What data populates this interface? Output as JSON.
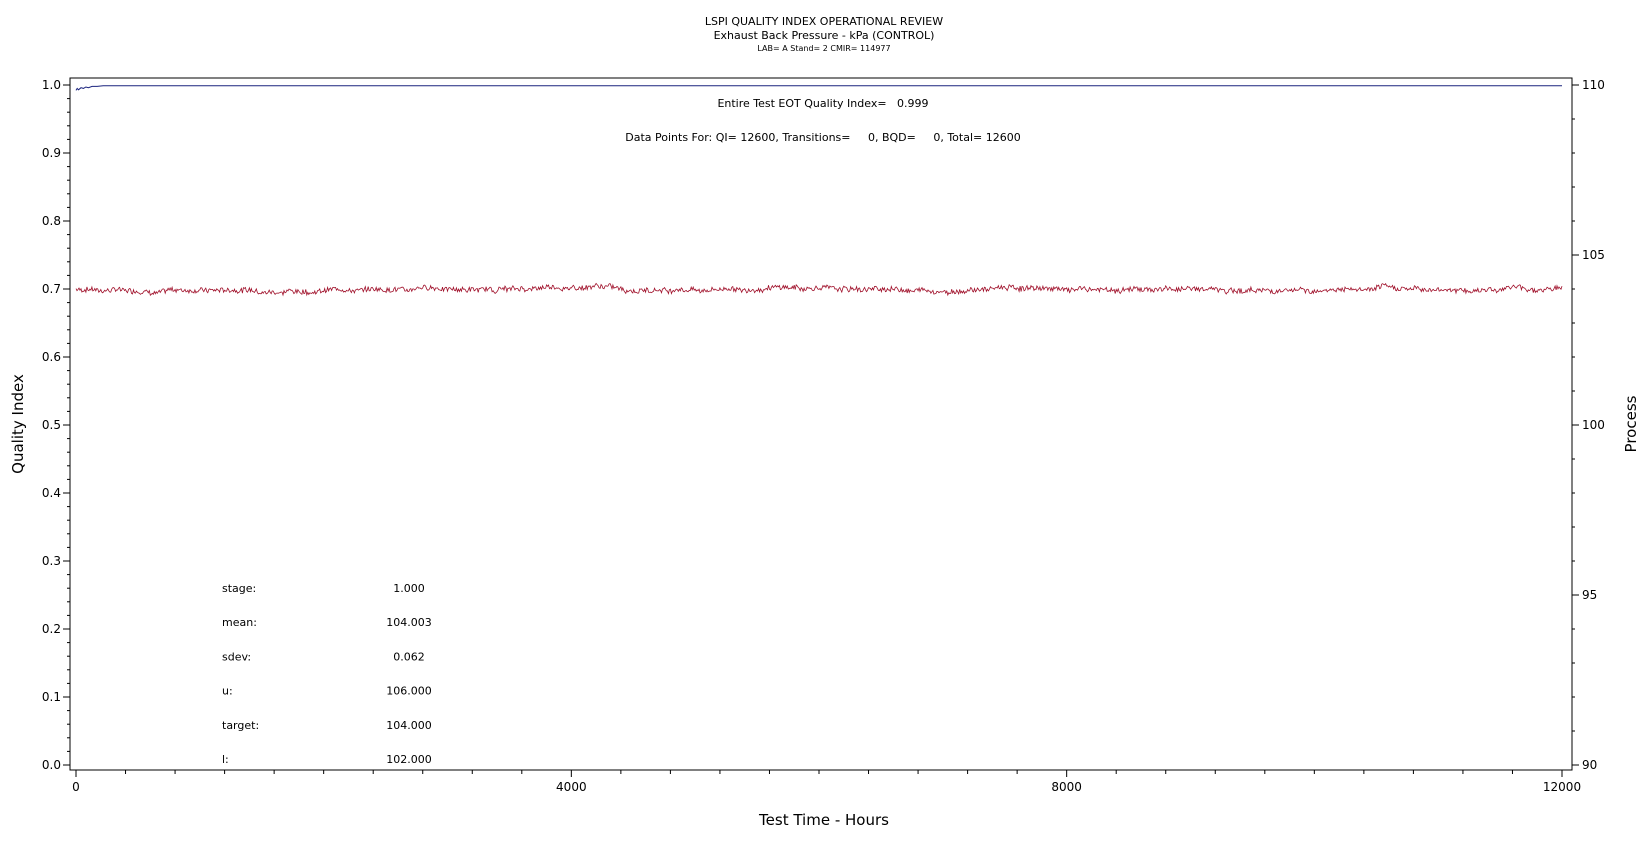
{
  "chart_data": {
    "type": "line",
    "title": "LSPI QUALITY INDEX OPERATIONAL REVIEW",
    "subtitle": "Exhaust Back Pressure - kPa (CONTROL)",
    "info_line": "LAB= A Stand= 2 CMIR= 114977",
    "xlabel": "Test Time - Hours",
    "ylabel_left": "Quality Index",
    "ylabel_right": "Process",
    "xlim": [
      0,
      12000
    ],
    "ylim_left": [
      0.0,
      1.0
    ],
    "ylim_right": [
      90,
      110
    ],
    "x_ticks": [
      0,
      4000,
      8000,
      12000
    ],
    "y_ticks_left": [
      "0.0",
      "0.1",
      "0.2",
      "0.3",
      "0.4",
      "0.5",
      "0.6",
      "0.7",
      "0.8",
      "0.9",
      "1.0"
    ],
    "y_ticks_right": [
      90,
      95,
      100,
      105,
      110
    ],
    "annotation_qi": "Entire Test EOT Quality Index=   0.999",
    "annotation_points": "Data Points For: QI= 12600, Transitions=     0, BQD=     0, Total= 12600",
    "series": [
      {
        "axis": "left",
        "color": "#1a237e",
        "x": [
          0,
          10,
          20,
          40,
          60,
          80,
          100,
          130,
          170,
          220,
          300,
          500,
          1000,
          4000,
          8000,
          12000
        ],
        "values": [
          0.992,
          0.995,
          0.993,
          0.996,
          0.995,
          0.997,
          0.996,
          0.998,
          0.998,
          0.999,
          0.999,
          0.999,
          0.999,
          0.999,
          0.999,
          0.999
        ]
      },
      {
        "axis": "right",
        "color": "#a0102a",
        "mean": 104.003,
        "sdev": 0.062,
        "x_range": [
          0,
          12000
        ]
      }
    ],
    "stats": [
      {
        "label": "stage:",
        "value": "1.000"
      },
      {
        "label": "mean:",
        "value": "104.003"
      },
      {
        "label": "sdev:",
        "value": "0.062"
      },
      {
        "label": "u:",
        "value": "106.000"
      },
      {
        "label": "target:",
        "value": "104.000"
      },
      {
        "label": "l:",
        "value": "102.000"
      }
    ]
  }
}
